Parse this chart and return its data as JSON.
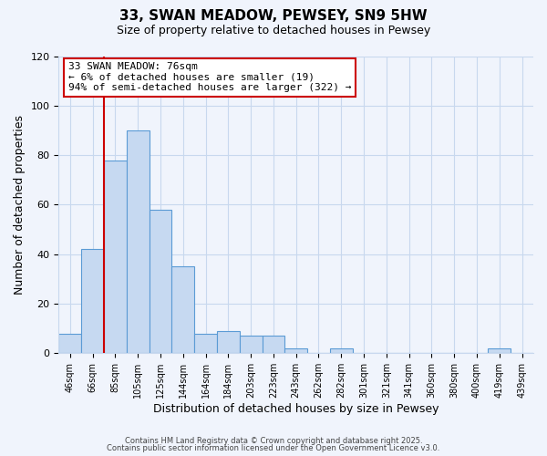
{
  "title": "33, SWAN MEADOW, PEWSEY, SN9 5HW",
  "subtitle": "Size of property relative to detached houses in Pewsey",
  "xlabel": "Distribution of detached houses by size in Pewsey",
  "ylabel": "Number of detached properties",
  "bar_labels": [
    "46sqm",
    "66sqm",
    "85sqm",
    "105sqm",
    "125sqm",
    "144sqm",
    "164sqm",
    "184sqm",
    "203sqm",
    "223sqm",
    "243sqm",
    "262sqm",
    "282sqm",
    "301sqm",
    "321sqm",
    "341sqm",
    "360sqm",
    "380sqm",
    "400sqm",
    "419sqm",
    "439sqm"
  ],
  "bar_values": [
    8,
    42,
    78,
    90,
    58,
    35,
    8,
    9,
    7,
    7,
    2,
    0,
    2,
    0,
    0,
    0,
    0,
    0,
    0,
    2,
    0
  ],
  "bar_color": "#c6d9f1",
  "bar_edge_color": "#5b9bd5",
  "ylim": [
    0,
    120
  ],
  "yticks": [
    0,
    20,
    40,
    60,
    80,
    100,
    120
  ],
  "vline_x": 1.5,
  "vline_color": "#cc0000",
  "annotation_title": "33 SWAN MEADOW: 76sqm",
  "annotation_line1": "← 6% of detached houses are smaller (19)",
  "annotation_line2": "94% of semi-detached houses are larger (322) →",
  "annotation_box_color": "#ffffff",
  "annotation_box_edge": "#cc0000",
  "footer1": "Contains HM Land Registry data © Crown copyright and database right 2025.",
  "footer2": "Contains public sector information licensed under the Open Government Licence v3.0.",
  "background_color": "#f0f4fc",
  "grid_color": "#c8d8ee",
  "title_fontsize": 11,
  "subtitle_fontsize": 9,
  "figsize": [
    6.0,
    5.0
  ],
  "dpi": 100
}
